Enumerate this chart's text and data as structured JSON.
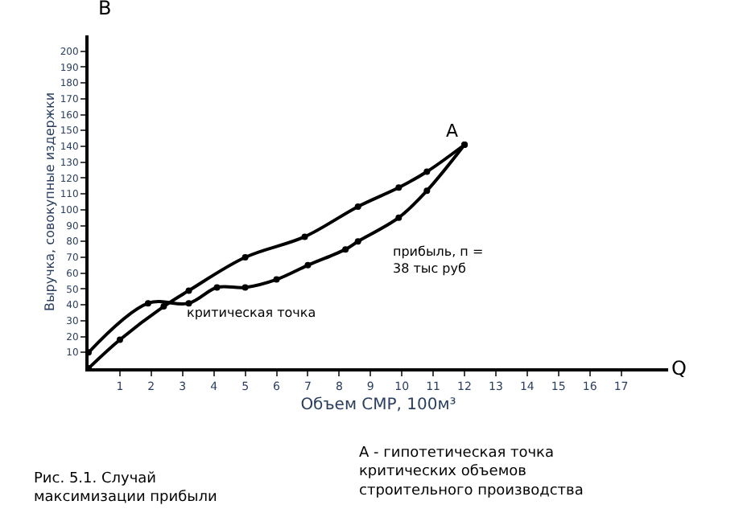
{
  "chart_data": {
    "type": "line",
    "xlabel": "Объем СМР, 100м³",
    "ylabel": "Выручка, совокупные издержки",
    "x": [
      0,
      1,
      2.4,
      3.2,
      5,
      6.9,
      8.6,
      9.9,
      10.8,
      12
    ],
    "series": [
      {
        "color": "#000000",
        "values": [
          0,
          18,
          39,
          49,
          70,
          83,
          102,
          114,
          124,
          141
        ]
      },
      {
        "color": "#000000",
        "x": [
          0,
          1.9,
          3.2,
          4.1,
          5,
          6,
          7,
          8.2,
          8.6,
          9.9,
          10.8,
          12
        ],
        "values": [
          10,
          41,
          41,
          51,
          51,
          56,
          65,
          75,
          80,
          95,
          112,
          141
        ]
      }
    ],
    "xlim": [
      0,
      18.5
    ],
    "ylim": [
      0,
      210
    ],
    "xticks": [
      1,
      2,
      3,
      4,
      5,
      6,
      7,
      8,
      9,
      10,
      11,
      12,
      13,
      14,
      15,
      16,
      17
    ],
    "yticks": [
      10,
      20,
      30,
      40,
      50,
      60,
      70,
      80,
      90,
      100,
      110,
      120,
      130,
      140,
      150,
      160,
      170,
      180,
      190,
      200
    ],
    "annotations": [
      "B",
      "Q",
      {
        "text": "A",
        "x": 12,
        "y": 141
      },
      "критическая точка",
      "прибыль, п = 38 тыс руб",
      "Рис. 5.1. Случай максимизации прибыли",
      "А - гипотетическая точка критических объемов строительного производства"
    ],
    "marker": "circle",
    "line_style": "solid",
    "legend": false
  }
}
